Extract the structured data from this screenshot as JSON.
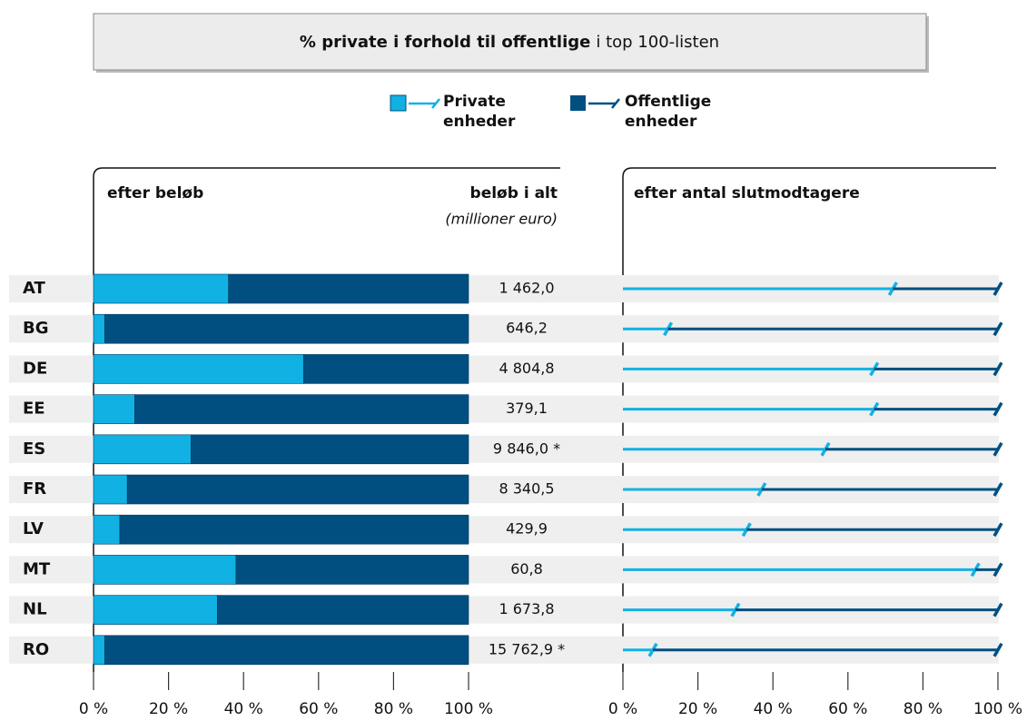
{
  "chart_data": [
    {
      "type": "bar",
      "title": "% private i forhold til offentlige",
      "title_suffix": "i top 100-listen",
      "panel_title": "efter beløb",
      "totals_title": "beløb i alt",
      "totals_unit": "(millioner euro)",
      "categories": [
        "AT",
        "BG",
        "DE",
        "EE",
        "ES",
        "FR",
        "LV",
        "MT",
        "NL",
        "RO"
      ],
      "series": [
        {
          "name": "Private enheder",
          "color": "#12b1e3",
          "values": [
            36,
            3,
            56,
            11,
            26,
            9,
            7,
            38,
            33,
            3
          ]
        },
        {
          "name": "Offentlige enheder",
          "color": "#004f80",
          "values": [
            64,
            97,
            44,
            89,
            74,
            91,
            93,
            62,
            67,
            97
          ]
        }
      ],
      "totals": [
        "1 462,0",
        "646,2",
        "4 804,8",
        "379,1",
        "9 846,0 *",
        "8 340,5",
        "429,9",
        "60,8",
        "1 673,8",
        "15 762,9 *"
      ],
      "xlim": [
        0,
        100
      ],
      "xticks": [
        {
          "value": 0,
          "label": "0 %"
        },
        {
          "value": 20,
          "label": "20 %"
        },
        {
          "value": 40,
          "label": "40 %"
        },
        {
          "value": 60,
          "label": "60 %"
        },
        {
          "value": 80,
          "label": "80 %"
        },
        {
          "value": 100,
          "label": "100 %"
        }
      ]
    },
    {
      "type": "line",
      "panel_title": "efter antal slutmodtagere",
      "series": [
        {
          "color": "#12b1e3",
          "values": [
            72,
            12,
            67,
            67,
            54,
            37,
            33,
            94,
            30,
            8
          ]
        },
        {
          "color": "#004f80",
          "values": [
            28,
            88,
            33,
            33,
            46,
            63,
            67,
            6,
            70,
            92
          ]
        }
      ],
      "xlim": [
        0,
        100
      ],
      "xticks": [
        {
          "value": 0,
          "label": "0 %"
        },
        {
          "value": 20,
          "label": "20 %"
        },
        {
          "value": 40,
          "label": "40 %"
        },
        {
          "value": 60,
          "label": "60 %"
        },
        {
          "value": 80,
          "label": "80 %"
        },
        {
          "value": 100,
          "label": "100 %"
        }
      ]
    }
  ]
}
